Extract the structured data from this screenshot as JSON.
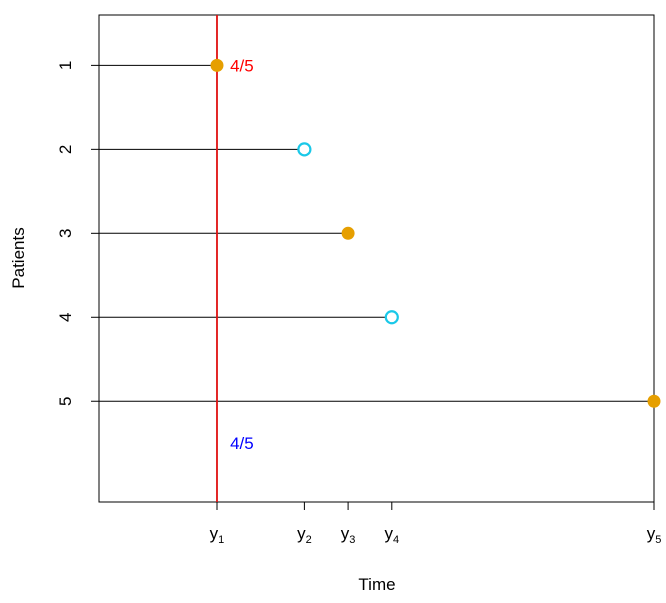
{
  "chart_data": {
    "type": "scatter",
    "title": "",
    "xlabel": "Time",
    "ylabel": "Patients",
    "x_ticks": [
      {
        "label": "y",
        "sub": "1",
        "value": 1
      },
      {
        "label": "y",
        "sub": "2",
        "value": 3
      },
      {
        "label": "y",
        "sub": "3",
        "value": 4
      },
      {
        "label": "y",
        "sub": "4",
        "value": 5
      },
      {
        "label": "y",
        "sub": "5",
        "value": 11
      }
    ],
    "y_ticks": [
      "1",
      "2",
      "3",
      "4",
      "5"
    ],
    "xlim": [
      -1.7,
      11
    ],
    "ylim": [
      0.4,
      6.2
    ],
    "grid": false,
    "patients": [
      {
        "patient": "1",
        "time": 1,
        "status": "event"
      },
      {
        "patient": "2",
        "time": 3,
        "status": "censored"
      },
      {
        "patient": "3",
        "time": 4,
        "status": "event"
      },
      {
        "patient": "4",
        "time": 5,
        "status": "censored"
      },
      {
        "patient": "5",
        "time": 11,
        "status": "event"
      }
    ],
    "reference_line": {
      "x": 1
    },
    "annotations": [
      {
        "text": "4/5",
        "x": 1.3,
        "patient": 1,
        "color": "#ff0000"
      },
      {
        "text": "4/5",
        "x": 1.3,
        "patient": 5.5,
        "color": "#0000ff"
      }
    ],
    "colors": {
      "event": "#e69f00",
      "censored": "#1ac8e8",
      "reference_line": "#e01010",
      "segment": "#000000"
    }
  }
}
